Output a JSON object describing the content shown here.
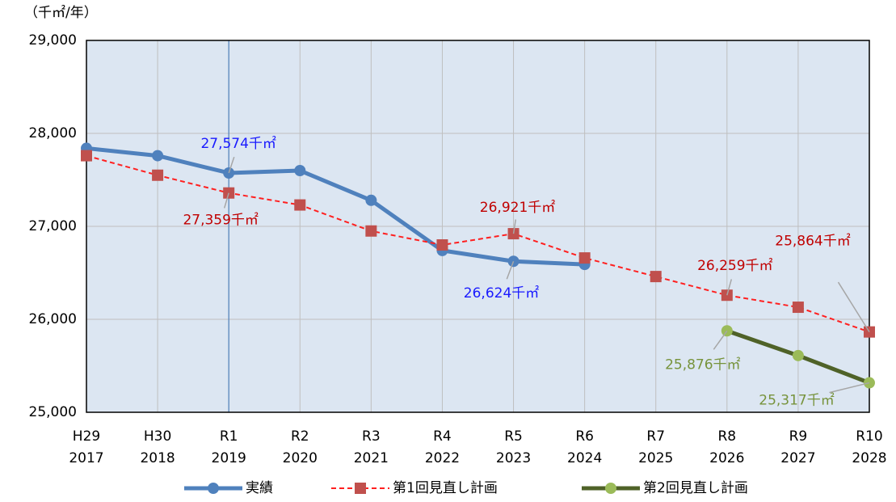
{
  "chart_data": {
    "type": "line",
    "y_unit_label": "（千㎡/年）",
    "categories": [
      [
        "H29",
        "2017"
      ],
      [
        "H30",
        "2018"
      ],
      [
        "R1",
        "2019"
      ],
      [
        "R2",
        "2020"
      ],
      [
        "R3",
        "2021"
      ],
      [
        "R4",
        "2022"
      ],
      [
        "R5",
        "2023"
      ],
      [
        "R6",
        "2024"
      ],
      [
        "R7",
        "2025"
      ],
      [
        "R8",
        "2026"
      ],
      [
        "R9",
        "2027"
      ],
      [
        "R10",
        "2028"
      ]
    ],
    "series": [
      {
        "name": "実績",
        "color": "#4f81bd",
        "marker": "circle",
        "line_style": "solid",
        "label_color": "#1a1aff",
        "values": [
          27840,
          27760,
          27574,
          27600,
          27280,
          26740,
          26624,
          26590,
          null,
          null,
          null,
          null
        ],
        "value_labels": [
          null,
          null,
          "27,574千㎡",
          null,
          null,
          null,
          "26,624千㎡",
          null,
          null,
          null,
          null,
          null
        ]
      },
      {
        "name": "第1回見直し計画",
        "color": "#ff2020",
        "marker_color": "#c0504d",
        "marker": "square",
        "line_style": "dashed",
        "label_color": "#c00000",
        "values": [
          27760,
          27550,
          27359,
          27230,
          26950,
          26800,
          26921,
          26660,
          26460,
          26259,
          26130,
          25864
        ],
        "value_labels": [
          null,
          null,
          "27,359千㎡",
          null,
          null,
          null,
          "26,921千㎡",
          null,
          null,
          "26,259千㎡",
          null,
          "25,864千㎡"
        ]
      },
      {
        "name": "第2回見直し計画",
        "color": "#4f6228",
        "marker_color": "#9bbb59",
        "marker": "circle",
        "line_style": "solid",
        "label_color": "#77933c",
        "values": [
          null,
          null,
          null,
          null,
          null,
          null,
          null,
          null,
          null,
          25876,
          25610,
          25317
        ],
        "value_labels": [
          null,
          null,
          null,
          null,
          null,
          null,
          null,
          null,
          null,
          "25,876千㎡",
          null,
          "25,317千㎡"
        ]
      }
    ],
    "ylim": [
      25000,
      29000
    ],
    "yticks": [
      {
        "value": 25000,
        "label": "25,000"
      },
      {
        "value": 26000,
        "label": "26,000"
      },
      {
        "value": 27000,
        "label": "27,000"
      },
      {
        "value": 28000,
        "label": "28,000"
      },
      {
        "value": 29000,
        "label": "29,000"
      }
    ],
    "grid": true
  }
}
